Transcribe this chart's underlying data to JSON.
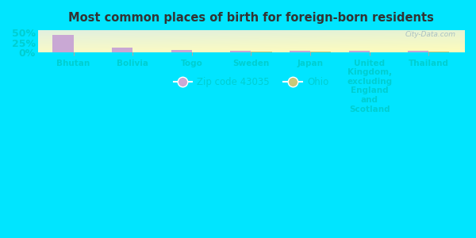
{
  "title": "Most common places of birth for foreign-born residents",
  "categories": [
    "Bhutan",
    "Bolivia",
    "Togo",
    "Sweden",
    "Japan",
    "United\nKingdom,\nexcluding\nEngland\nand\nScotland",
    "Thailand"
  ],
  "zip_values": [
    44,
    13,
    6,
    5,
    5,
    4,
    4
  ],
  "ohio_values": [
    1,
    1,
    1,
    2,
    2,
    1,
    2
  ],
  "zip_color": "#c9a8d4",
  "ohio_color": "#c8c87a",
  "background_outer": "#00e5ff",
  "title_color": "#333333",
  "tick_color": "#00ced1",
  "watermark": "City-Data.com",
  "legend_zip_label": "Zip code 43035",
  "legend_ohio_label": "Ohio",
  "yticks": [
    0,
    25,
    50
  ],
  "ytick_labels": [
    "0%",
    "25%",
    "50%"
  ],
  "bar_width": 0.35,
  "figsize": [
    6.0,
    3.0
  ],
  "dpi": 100
}
